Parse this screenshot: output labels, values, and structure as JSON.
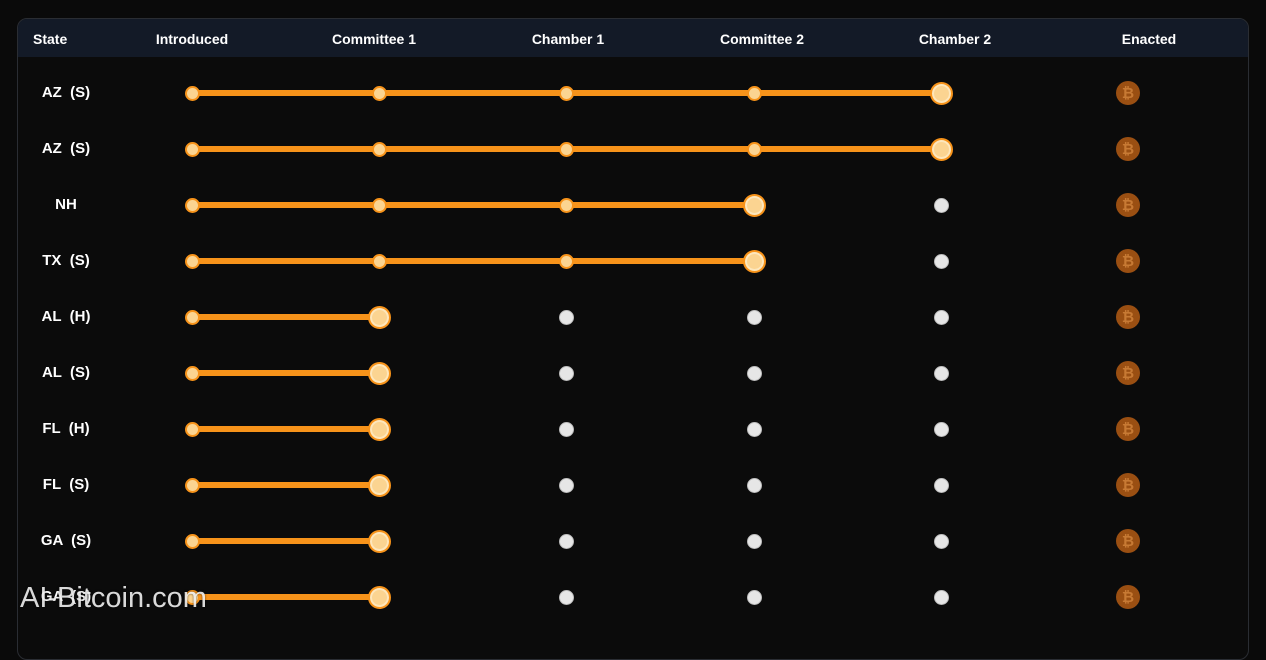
{
  "table": {
    "headers": [
      "State",
      "Introduced",
      "Committee 1",
      "Chamber 1",
      "Committee 2",
      "Chamber 2",
      "Enacted"
    ],
    "rows": [
      {
        "state": "AZ  (S)",
        "stage": 4
      },
      {
        "state": "AZ  (S)",
        "stage": 4
      },
      {
        "state": "NH",
        "stage": 3
      },
      {
        "state": "TX  (S)",
        "stage": 3
      },
      {
        "state": "AL  (H)",
        "stage": 1
      },
      {
        "state": "AL  (S)",
        "stage": 1
      },
      {
        "state": "FL  (H)",
        "stage": 1
      },
      {
        "state": "FL  (S)",
        "stage": 1
      },
      {
        "state": "GA  (S)",
        "stage": 1
      },
      {
        "state": "GA  (S)",
        "stage": 1
      }
    ],
    "enacted_symbol": "₿"
  },
  "colors": {
    "progress": "#f7931a",
    "pending_dot": "#e6e6e6",
    "enacted_icon": "#9a4f12",
    "header_bg": "#131a27"
  },
  "icons": {
    "enacted": "bitcoin-icon"
  },
  "watermark": "AI-Bitcoin.com"
}
